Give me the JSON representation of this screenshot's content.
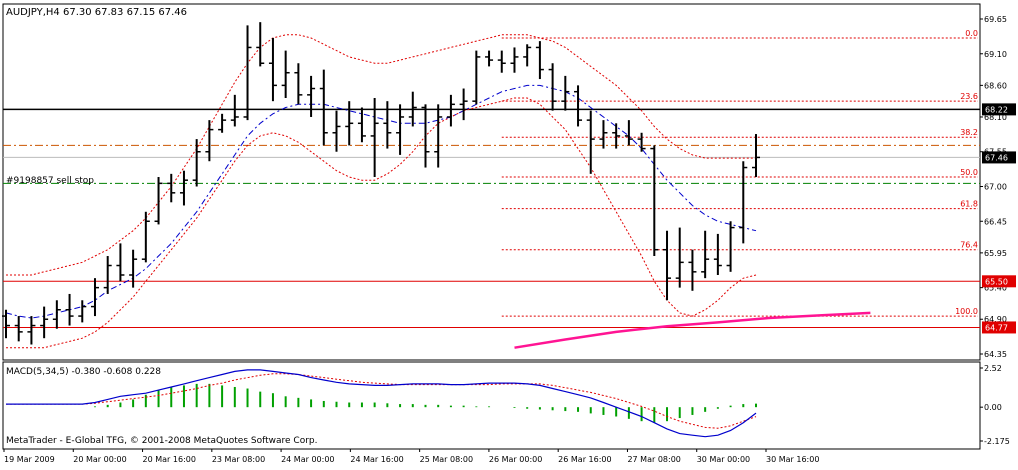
{
  "header": {
    "symbol_line": "AUDJPY,H4  67.30 67.83 67.15 67.46"
  },
  "order_label": "#9198857 sell stop",
  "copyright": "MetaTrader - E-Global TFG, © 2001-2008 MetaQuotes Software Corp.",
  "colors": {
    "bars": "#000000",
    "ma": "#0000cc",
    "envelope": "#e00000",
    "fib": "#e00000",
    "pink_ma": "#ff1493",
    "green_line": "#008000",
    "orange_line": "#cc5500",
    "macd_hist": "#00a000",
    "macd_signal": "#e00000"
  },
  "chart_data": [
    {
      "type": "ohlc",
      "title": "AUDJPY,H4",
      "ylim": [
        64.35,
        69.65
      ],
      "yticks": [
        "69.65",
        "69.10",
        "68.60",
        "68.10",
        "67.55",
        "67.00",
        "66.45",
        "65.95",
        "65.40",
        "64.90",
        "64.35"
      ],
      "xticks": [
        "19 Mar 2009",
        "20 Mar 00:00",
        "20 Mar 16:00",
        "23 Mar 08:00",
        "24 Mar 00:00",
        "24 Mar 16:00",
        "25 Mar 08:00",
        "26 Mar 00:00",
        "26 Mar 16:00",
        "27 Mar 08:00",
        "30 Mar 00:00",
        "30 Mar 16:00"
      ],
      "last": {
        "open": 67.3,
        "high": 67.83,
        "low": 67.15,
        "close": 67.46
      },
      "bars": [
        [
          64.95,
          65.05,
          64.6,
          64.8
        ],
        [
          64.8,
          64.95,
          64.55,
          64.7
        ],
        [
          64.7,
          64.95,
          64.5,
          64.8
        ],
        [
          64.8,
          65.1,
          64.6,
          64.9
        ],
        [
          64.9,
          65.2,
          64.75,
          65.05
        ],
        [
          65.05,
          65.3,
          64.8,
          64.95
        ],
        [
          64.95,
          65.2,
          64.85,
          65.1
        ],
        [
          65.1,
          65.55,
          64.95,
          65.4
        ],
        [
          65.4,
          65.9,
          65.3,
          65.75
        ],
        [
          65.75,
          66.1,
          65.5,
          65.6
        ],
        [
          65.6,
          66.0,
          65.4,
          65.85
        ],
        [
          65.85,
          66.6,
          65.8,
          66.45
        ],
        [
          66.45,
          67.15,
          66.4,
          67.05
        ],
        [
          67.05,
          67.2,
          66.75,
          66.9
        ],
        [
          66.9,
          67.25,
          66.7,
          67.1
        ],
        [
          67.1,
          67.75,
          67.0,
          67.55
        ],
        [
          67.55,
          68.05,
          67.4,
          67.9
        ],
        [
          67.9,
          68.15,
          67.85,
          68.05
        ],
        [
          68.05,
          68.45,
          67.95,
          68.1
        ],
        [
          68.1,
          69.55,
          68.05,
          69.2
        ],
        [
          69.2,
          69.6,
          68.9,
          68.95
        ],
        [
          68.95,
          69.35,
          68.35,
          68.6
        ],
        [
          68.6,
          69.15,
          68.4,
          68.8
        ],
        [
          68.8,
          68.95,
          68.3,
          68.45
        ],
        [
          68.45,
          68.75,
          68.1,
          68.55
        ],
        [
          68.55,
          68.85,
          67.65,
          67.85
        ],
        [
          67.85,
          68.2,
          67.55,
          67.95
        ],
        [
          67.95,
          68.35,
          67.65,
          68.0
        ],
        [
          68.0,
          68.25,
          67.7,
          67.8
        ],
        [
          67.8,
          68.4,
          67.15,
          68.0
        ],
        [
          68.0,
          68.35,
          67.6,
          67.85
        ],
        [
          67.85,
          68.3,
          67.5,
          68.1
        ],
        [
          68.1,
          68.5,
          67.95,
          68.25
        ],
        [
          68.25,
          68.3,
          67.3,
          67.55
        ],
        [
          67.55,
          68.3,
          67.3,
          68.1
        ],
        [
          68.1,
          68.45,
          67.95,
          68.3
        ],
        [
          68.3,
          68.55,
          68.05,
          68.35
        ],
        [
          68.35,
          69.15,
          68.3,
          69.05
        ],
        [
          69.05,
          69.15,
          68.9,
          69.0
        ],
        [
          69.0,
          69.15,
          68.8,
          68.95
        ],
        [
          68.95,
          69.2,
          68.8,
          69.05
        ],
        [
          69.05,
          69.25,
          68.9,
          69.2
        ],
        [
          69.2,
          69.3,
          68.7,
          68.85
        ],
        [
          68.85,
          68.95,
          68.2,
          68.35
        ],
        [
          68.35,
          68.75,
          68.2,
          68.5
        ],
        [
          68.5,
          68.6,
          67.95,
          68.05
        ],
        [
          68.05,
          68.2,
          67.2,
          67.75
        ],
        [
          67.75,
          68.05,
          67.6,
          67.85
        ],
        [
          67.85,
          68.0,
          67.6,
          67.8
        ],
        [
          67.8,
          68.05,
          67.65,
          67.75
        ],
        [
          67.75,
          67.85,
          67.55,
          67.6
        ],
        [
          67.6,
          67.65,
          65.9,
          66.0
        ],
        [
          66.0,
          66.3,
          65.2,
          65.55
        ],
        [
          65.55,
          66.35,
          65.4,
          65.8
        ],
        [
          65.8,
          66.0,
          65.35,
          65.65
        ],
        [
          65.65,
          66.3,
          65.55,
          65.85
        ],
        [
          65.85,
          66.25,
          65.6,
          65.75
        ],
        [
          65.75,
          66.45,
          65.65,
          66.35
        ],
        [
          66.35,
          67.4,
          66.1,
          67.3
        ],
        [
          67.3,
          67.83,
          67.15,
          67.46
        ]
      ],
      "ma": [
        65.0,
        64.95,
        64.92,
        64.95,
        65.0,
        65.05,
        65.1,
        65.2,
        65.35,
        65.45,
        65.55,
        65.7,
        65.9,
        66.1,
        66.35,
        66.6,
        66.9,
        67.2,
        67.5,
        67.8,
        68.0,
        68.15,
        68.25,
        68.3,
        68.3,
        68.3,
        68.25,
        68.2,
        68.15,
        68.1,
        68.05,
        68.0,
        68.0,
        68.0,
        68.05,
        68.1,
        68.2,
        68.3,
        68.4,
        68.5,
        68.55,
        68.6,
        68.6,
        68.55,
        68.5,
        68.4,
        68.25,
        68.1,
        67.95,
        67.8,
        67.6,
        67.35,
        67.1,
        66.9,
        66.7,
        66.55,
        66.45,
        66.4,
        66.35,
        66.3
      ],
      "envelope_upper": [
        65.6,
        65.6,
        65.6,
        65.65,
        65.7,
        65.75,
        65.8,
        65.9,
        66.0,
        66.15,
        66.3,
        66.5,
        66.75,
        67.0,
        67.3,
        67.6,
        67.95,
        68.3,
        68.65,
        68.95,
        69.2,
        69.35,
        69.4,
        69.4,
        69.35,
        69.25,
        69.15,
        69.05,
        69.0,
        68.95,
        68.95,
        69.0,
        69.05,
        69.1,
        69.15,
        69.2,
        69.25,
        69.3,
        69.35,
        69.4,
        69.4,
        69.4,
        69.35,
        69.3,
        69.2,
        69.05,
        68.9,
        68.75,
        68.6,
        68.4,
        68.2,
        67.95,
        67.75,
        67.6,
        67.5,
        67.45,
        67.45,
        67.45,
        67.45,
        67.45
      ],
      "envelope_lower": [
        64.45,
        64.45,
        64.45,
        64.45,
        64.5,
        64.55,
        64.6,
        64.7,
        64.85,
        65.05,
        65.25,
        65.5,
        65.75,
        66.0,
        66.25,
        66.5,
        66.8,
        67.1,
        67.4,
        67.65,
        67.8,
        67.85,
        67.8,
        67.7,
        67.55,
        67.4,
        67.25,
        67.15,
        67.1,
        67.1,
        67.2,
        67.35,
        67.55,
        67.8,
        68.0,
        68.1,
        68.2,
        68.25,
        68.3,
        68.35,
        68.4,
        68.4,
        68.3,
        68.1,
        67.9,
        67.6,
        67.3,
        66.95,
        66.6,
        66.25,
        65.9,
        65.5,
        65.2,
        65.0,
        64.95,
        65.05,
        65.2,
        65.4,
        65.55,
        65.6
      ],
      "pink_ma": [
        [
          40,
          64.45
        ],
        [
          44,
          64.58
        ],
        [
          48,
          64.7
        ],
        [
          52,
          64.79
        ],
        [
          56,
          64.85
        ],
        [
          60,
          64.92
        ],
        [
          64,
          64.96
        ],
        [
          68,
          65.0
        ]
      ],
      "horizontal_lines": [
        {
          "price": 68.22,
          "label": "68.22",
          "color": "#000000",
          "style": "solid"
        },
        {
          "price": 67.65,
          "label": "",
          "color": "#cc5500",
          "style": "dashdot"
        },
        {
          "price": 67.46,
          "label": "67.46",
          "color": "#bbbbbb",
          "style": "solid"
        },
        {
          "price": 67.05,
          "label": "",
          "color": "#008000",
          "style": "dashdot"
        },
        {
          "price": 65.5,
          "label": "65.50",
          "color": "#e00000",
          "style": "solid"
        },
        {
          "price": 64.77,
          "label": "64.77",
          "color": "#e00000",
          "style": "solid"
        }
      ],
      "fib_levels": [
        {
          "label": "0.0",
          "price": 69.35
        },
        {
          "label": "23.6",
          "price": 68.35
        },
        {
          "label": "38.2",
          "price": 67.78
        },
        {
          "label": "50.0",
          "price": 67.15
        },
        {
          "label": "61.8",
          "price": 66.65
        },
        {
          "label": "76.4",
          "price": 66.0
        },
        {
          "label": "100.0",
          "price": 64.95
        }
      ]
    },
    {
      "type": "macd",
      "title": "MACD(5,34,5) -0.380 -0.608 0.228",
      "ylim": [
        -2.175,
        2.52
      ],
      "yticks": [
        "2.52",
        "0.00",
        "-2.175"
      ],
      "histogram": [
        0,
        0,
        0,
        0,
        0,
        0,
        0,
        0.05,
        0.15,
        0.3,
        0.5,
        0.8,
        1.1,
        1.3,
        1.4,
        1.5,
        1.5,
        1.4,
        1.3,
        1.2,
        1.0,
        0.9,
        0.7,
        0.6,
        0.5,
        0.4,
        0.35,
        0.3,
        0.3,
        0.3,
        0.25,
        0.2,
        0.2,
        0.15,
        0.15,
        0.1,
        0.1,
        0.05,
        0.05,
        0,
        -0.05,
        -0.1,
        -0.15,
        -0.2,
        -0.25,
        -0.3,
        -0.4,
        -0.5,
        -0.6,
        -0.75,
        -0.9,
        -1.0,
        -0.9,
        -0.7,
        -0.5,
        -0.3,
        -0.1,
        0.1,
        0.2,
        0.228
      ],
      "macd": [
        0.2,
        0.2,
        0.2,
        0.2,
        0.2,
        0.2,
        0.2,
        0.3,
        0.5,
        0.7,
        0.8,
        0.9,
        1.1,
        1.3,
        1.5,
        1.7,
        1.9,
        2.1,
        2.3,
        2.4,
        2.4,
        2.3,
        2.2,
        2.1,
        1.9,
        1.75,
        1.6,
        1.5,
        1.45,
        1.4,
        1.4,
        1.45,
        1.5,
        1.5,
        1.5,
        1.45,
        1.45,
        1.5,
        1.55,
        1.55,
        1.55,
        1.5,
        1.4,
        1.2,
        1.0,
        0.8,
        0.6,
        0.3,
        0.0,
        -0.3,
        -0.6,
        -1.0,
        -1.4,
        -1.7,
        -1.8,
        -1.9,
        -1.8,
        -1.5,
        -1.0,
        -0.38
      ],
      "signal": [
        0.2,
        0.2,
        0.2,
        0.2,
        0.2,
        0.2,
        0.2,
        0.25,
        0.35,
        0.45,
        0.55,
        0.65,
        0.75,
        0.9,
        1.05,
        1.2,
        1.4,
        1.55,
        1.75,
        1.9,
        2.05,
        2.15,
        2.15,
        2.1,
        2.0,
        1.9,
        1.8,
        1.7,
        1.6,
        1.55,
        1.5,
        1.45,
        1.45,
        1.45,
        1.45,
        1.45,
        1.45,
        1.45,
        1.45,
        1.5,
        1.5,
        1.5,
        1.5,
        1.4,
        1.25,
        1.1,
        0.95,
        0.75,
        0.55,
        0.3,
        0.05,
        -0.25,
        -0.6,
        -0.9,
        -1.1,
        -1.3,
        -1.35,
        -1.2,
        -0.9,
        -0.608
      ]
    }
  ]
}
